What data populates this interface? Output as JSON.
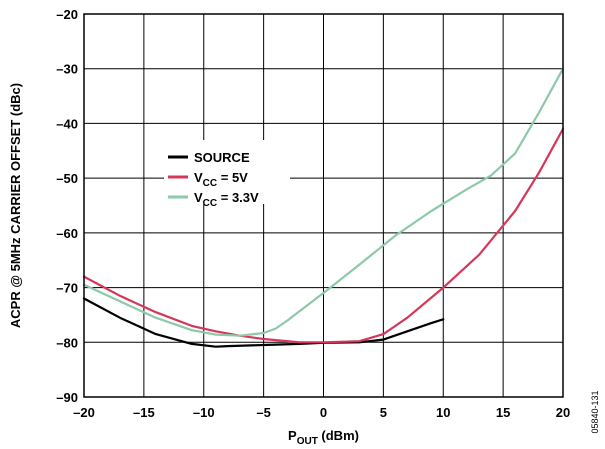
{
  "chart_data": {
    "type": "line",
    "xlabel": {
      "main": "P",
      "sub": "OUT",
      "rest": " (dBm)"
    },
    "ylabel": "ACPR @ 5MHz CARRIER OFFSET (dBc)",
    "xlim": [
      -20,
      20
    ],
    "ylim": [
      -90,
      -20
    ],
    "x_ticks": [
      -20,
      -15,
      -10,
      -5,
      0,
      5,
      10,
      15,
      20
    ],
    "y_ticks": [
      -20,
      -30,
      -40,
      -50,
      -60,
      -70,
      -80,
      -90
    ],
    "x_tick_labels": [
      "–20",
      "–15",
      "–10",
      "–5",
      "0",
      "5",
      "10",
      "15",
      "20"
    ],
    "y_tick_labels": [
      "–20",
      "–30",
      "–40",
      "–50",
      "–60",
      "–70",
      "–80",
      "–90"
    ],
    "grid": true,
    "legend_position": "center-left",
    "series": [
      {
        "name": "SOURCE",
        "legend": {
          "main": "SOURCE",
          "sub": "",
          "rest": ""
        },
        "color": "#000000",
        "x": [
          -20,
          -17,
          -14,
          -11,
          -9,
          -8,
          -5,
          -2,
          0,
          3,
          5,
          7,
          9,
          10
        ],
        "y": [
          -72,
          -75.5,
          -78.5,
          -80.3,
          -80.8,
          -80.7,
          -80.5,
          -80.3,
          -80.1,
          -80,
          -79.5,
          -78,
          -76.5,
          -75.8
        ]
      },
      {
        "name": "VCC = 5V",
        "legend": {
          "main": "V",
          "sub": "CC",
          "rest": " = 5V"
        },
        "color": "#d4375a",
        "x": [
          -20,
          -17,
          -14,
          -11,
          -9,
          -7,
          -5,
          -2,
          0,
          3,
          5,
          7,
          10,
          13,
          16,
          18,
          20
        ],
        "y": [
          -68,
          -71.5,
          -74.5,
          -77,
          -78,
          -78.8,
          -79.4,
          -80,
          -80,
          -79.8,
          -78.5,
          -75.5,
          -70,
          -64,
          -56,
          -49,
          -41
        ]
      },
      {
        "name": "VCC = 3.3V",
        "legend": {
          "main": "V",
          "sub": "CC",
          "rest": " = 3.3V"
        },
        "color": "#8dc9a8",
        "x": [
          -20,
          -17,
          -14,
          -11,
          -9,
          -7,
          -5,
          -4,
          -3,
          -2,
          0,
          3,
          6,
          9,
          12,
          14,
          16,
          18,
          20
        ],
        "y": [
          -69.5,
          -72.5,
          -75.5,
          -77.8,
          -78.6,
          -78.8,
          -78.3,
          -77.5,
          -76,
          -74.3,
          -71,
          -65.8,
          -60.5,
          -56,
          -52,
          -49.5,
          -45.5,
          -38,
          -30
        ]
      }
    ]
  },
  "figure_id": "05840-131"
}
